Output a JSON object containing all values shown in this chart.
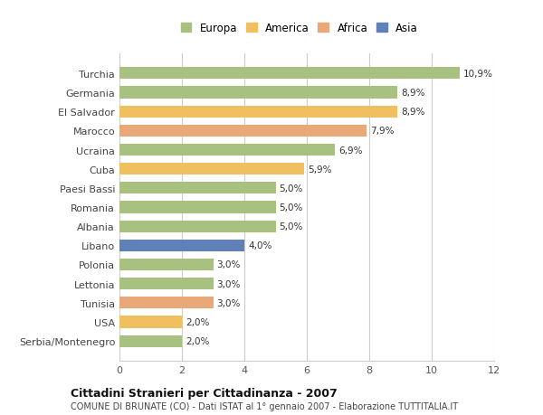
{
  "categories": [
    "Serbia/Montenegro",
    "USA",
    "Tunisia",
    "Lettonia",
    "Polonia",
    "Libano",
    "Albania",
    "Romania",
    "Paesi Bassi",
    "Cuba",
    "Ucraina",
    "Marocco",
    "El Salvador",
    "Germania",
    "Turchia"
  ],
  "values": [
    2.0,
    2.0,
    3.0,
    3.0,
    3.0,
    4.0,
    5.0,
    5.0,
    5.0,
    5.9,
    6.9,
    7.9,
    8.9,
    8.9,
    10.9
  ],
  "labels": [
    "2,0%",
    "2,0%",
    "3,0%",
    "3,0%",
    "3,0%",
    "4,0%",
    "5,0%",
    "5,0%",
    "5,0%",
    "5,9%",
    "6,9%",
    "7,9%",
    "8,9%",
    "8,9%",
    "10,9%"
  ],
  "colors": [
    "#a8c080",
    "#f0c060",
    "#e8a878",
    "#a8c080",
    "#a8c080",
    "#6080b8",
    "#a8c080",
    "#a8c080",
    "#a8c080",
    "#f0c060",
    "#a8c080",
    "#e8a878",
    "#f0c060",
    "#a8c080",
    "#a8c080"
  ],
  "legend": [
    {
      "label": "Europa",
      "color": "#a8c080"
    },
    {
      "label": "America",
      "color": "#f0c060"
    },
    {
      "label": "Africa",
      "color": "#e8a878"
    },
    {
      "label": "Asia",
      "color": "#6080b8"
    }
  ],
  "xlim": [
    0,
    12
  ],
  "xticks": [
    0,
    2,
    4,
    6,
    8,
    10,
    12
  ],
  "title": "Cittadini Stranieri per Cittadinanza - 2007",
  "subtitle": "COMUNE DI BRUNATE (CO) - Dati ISTAT al 1° gennaio 2007 - Elaborazione TUTTITALIA.IT",
  "background_color": "#ffffff",
  "bar_height": 0.62,
  "grid_color": "#cccccc"
}
